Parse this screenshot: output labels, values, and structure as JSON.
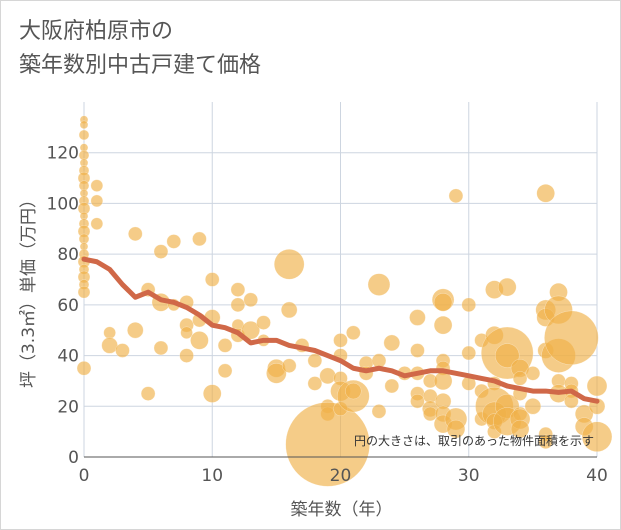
{
  "chart_data": {
    "type": "scatter",
    "title_lines": [
      "大阪府柏原市の",
      "築年数別中古戸建て価格"
    ],
    "xlabel": "築年数（年）",
    "ylabel": "坪（3.3㎡）単価（万円）",
    "xlim": [
      0,
      40
    ],
    "ylim": [
      0,
      140
    ],
    "x_ticks": [
      0,
      10,
      20,
      30,
      40
    ],
    "y_ticks": [
      0,
      20,
      40,
      60,
      80,
      100,
      120
    ],
    "grid": true,
    "note": "円の大きさは、取引のあった物件面積を示す",
    "colors": {
      "bubble": "#f0b048",
      "trend": "#d06848",
      "grid": "#cdd5e0"
    },
    "trend_line": {
      "x": [
        0,
        1,
        2,
        3,
        4,
        5,
        6,
        7,
        8,
        9,
        10,
        11,
        12,
        13,
        14,
        15,
        16,
        17,
        18,
        19,
        20,
        21,
        22,
        23,
        24,
        25,
        26,
        27,
        28,
        29,
        30,
        31,
        32,
        33,
        34,
        35,
        36,
        37,
        38,
        39,
        40
      ],
      "y": [
        78,
        77,
        74,
        68,
        63,
        65,
        62,
        61,
        59,
        56,
        52,
        51,
        49,
        45,
        46,
        46,
        44,
        43,
        42,
        40,
        38,
        35,
        34,
        35,
        34,
        32,
        33,
        34,
        34,
        33,
        32,
        31,
        30,
        28,
        27,
        26,
        26,
        25.5,
        26,
        23,
        22
      ]
    },
    "points": [
      {
        "x": 0,
        "y": 133,
        "s": 4
      },
      {
        "x": 0,
        "y": 131,
        "s": 4
      },
      {
        "x": 0,
        "y": 127,
        "s": 5
      },
      {
        "x": 0,
        "y": 122,
        "s": 4
      },
      {
        "x": 0,
        "y": 119,
        "s": 5
      },
      {
        "x": 0,
        "y": 116,
        "s": 4
      },
      {
        "x": 0,
        "y": 113,
        "s": 5
      },
      {
        "x": 0,
        "y": 110,
        "s": 6
      },
      {
        "x": 0,
        "y": 107,
        "s": 5
      },
      {
        "x": 0,
        "y": 104,
        "s": 4
      },
      {
        "x": 0,
        "y": 101,
        "s": 5
      },
      {
        "x": 0,
        "y": 98,
        "s": 6
      },
      {
        "x": 0,
        "y": 95,
        "s": 4
      },
      {
        "x": 0,
        "y": 92,
        "s": 5
      },
      {
        "x": 0,
        "y": 89,
        "s": 6
      },
      {
        "x": 0,
        "y": 86,
        "s": 5
      },
      {
        "x": 0,
        "y": 83,
        "s": 4
      },
      {
        "x": 0,
        "y": 80,
        "s": 5
      },
      {
        "x": 0,
        "y": 77,
        "s": 6
      },
      {
        "x": 0,
        "y": 74,
        "s": 5
      },
      {
        "x": 0,
        "y": 71,
        "s": 6
      },
      {
        "x": 0,
        "y": 68,
        "s": 5
      },
      {
        "x": 0,
        "y": 65,
        "s": 6
      },
      {
        "x": 0,
        "y": 35,
        "s": 7
      },
      {
        "x": 1,
        "y": 107,
        "s": 6
      },
      {
        "x": 1,
        "y": 101,
        "s": 6
      },
      {
        "x": 1,
        "y": 92,
        "s": 6
      },
      {
        "x": 2,
        "y": 49,
        "s": 6
      },
      {
        "x": 2,
        "y": 44,
        "s": 8
      },
      {
        "x": 3,
        "y": 42,
        "s": 7
      },
      {
        "x": 4,
        "y": 88,
        "s": 7
      },
      {
        "x": 4,
        "y": 50,
        "s": 8
      },
      {
        "x": 5,
        "y": 66,
        "s": 7
      },
      {
        "x": 5,
        "y": 25,
        "s": 7
      },
      {
        "x": 6,
        "y": 81,
        "s": 7
      },
      {
        "x": 6,
        "y": 61,
        "s": 9
      },
      {
        "x": 6,
        "y": 43,
        "s": 7
      },
      {
        "x": 7,
        "y": 85,
        "s": 7
      },
      {
        "x": 7,
        "y": 60,
        "s": 6
      },
      {
        "x": 8,
        "y": 61,
        "s": 7
      },
      {
        "x": 8,
        "y": 52,
        "s": 7
      },
      {
        "x": 8,
        "y": 49,
        "s": 6
      },
      {
        "x": 8,
        "y": 40,
        "s": 7
      },
      {
        "x": 9,
        "y": 86,
        "s": 7
      },
      {
        "x": 9,
        "y": 54,
        "s": 7
      },
      {
        "x": 9,
        "y": 46,
        "s": 9
      },
      {
        "x": 10,
        "y": 70,
        "s": 7
      },
      {
        "x": 10,
        "y": 55,
        "s": 8
      },
      {
        "x": 10,
        "y": 25,
        "s": 9
      },
      {
        "x": 11,
        "y": 44,
        "s": 7
      },
      {
        "x": 11,
        "y": 34,
        "s": 7
      },
      {
        "x": 12,
        "y": 66,
        "s": 7
      },
      {
        "x": 12,
        "y": 60,
        "s": 7
      },
      {
        "x": 12,
        "y": 52,
        "s": 6
      },
      {
        "x": 12,
        "y": 48,
        "s": 7
      },
      {
        "x": 13,
        "y": 62,
        "s": 7
      },
      {
        "x": 13,
        "y": 50,
        "s": 9
      },
      {
        "x": 14,
        "y": 53,
        "s": 7
      },
      {
        "x": 14,
        "y": 46,
        "s": 6
      },
      {
        "x": 15,
        "y": 35,
        "s": 9
      },
      {
        "x": 15,
        "y": 33,
        "s": 10
      },
      {
        "x": 16,
        "y": 76,
        "s": 15
      },
      {
        "x": 16,
        "y": 58,
        "s": 8
      },
      {
        "x": 16,
        "y": 36,
        "s": 7
      },
      {
        "x": 17,
        "y": 44,
        "s": 7
      },
      {
        "x": 18,
        "y": 29,
        "s": 7
      },
      {
        "x": 18,
        "y": 38,
        "s": 7
      },
      {
        "x": 19,
        "y": 32,
        "s": 8
      },
      {
        "x": 19,
        "y": 20,
        "s": 7
      },
      {
        "x": 19,
        "y": 17,
        "s": 7
      },
      {
        "x": 19,
        "y": 5,
        "s": 42
      },
      {
        "x": 20,
        "y": 46,
        "s": 7
      },
      {
        "x": 20,
        "y": 40,
        "s": 7
      },
      {
        "x": 20,
        "y": 31,
        "s": 7
      },
      {
        "x": 20,
        "y": 26,
        "s": 10
      },
      {
        "x": 20,
        "y": 19,
        "s": 7
      },
      {
        "x": 21,
        "y": 49,
        "s": 7
      },
      {
        "x": 21,
        "y": 24,
        "s": 16
      },
      {
        "x": 21,
        "y": 26,
        "s": 8
      },
      {
        "x": 22,
        "y": 37,
        "s": 7
      },
      {
        "x": 22,
        "y": 33,
        "s": 7
      },
      {
        "x": 23,
        "y": 38,
        "s": 7
      },
      {
        "x": 23,
        "y": 68,
        "s": 11
      },
      {
        "x": 23,
        "y": 18,
        "s": 7
      },
      {
        "x": 24,
        "y": 45,
        "s": 8
      },
      {
        "x": 24,
        "y": 28,
        "s": 7
      },
      {
        "x": 25,
        "y": 33,
        "s": 7
      },
      {
        "x": 26,
        "y": 55,
        "s": 8
      },
      {
        "x": 26,
        "y": 42,
        "s": 7
      },
      {
        "x": 26,
        "y": 33,
        "s": 7
      },
      {
        "x": 26,
        "y": 25,
        "s": 7
      },
      {
        "x": 26,
        "y": 22,
        "s": 7
      },
      {
        "x": 27,
        "y": 30,
        "s": 7
      },
      {
        "x": 27,
        "y": 24,
        "s": 7
      },
      {
        "x": 27,
        "y": 19,
        "s": 8
      },
      {
        "x": 27,
        "y": 17,
        "s": 7
      },
      {
        "x": 28,
        "y": 62,
        "s": 11
      },
      {
        "x": 28,
        "y": 61,
        "s": 9
      },
      {
        "x": 28,
        "y": 52,
        "s": 9
      },
      {
        "x": 28,
        "y": 38,
        "s": 7
      },
      {
        "x": 28,
        "y": 35,
        "s": 7
      },
      {
        "x": 28,
        "y": 30,
        "s": 9
      },
      {
        "x": 28,
        "y": 22,
        "s": 8
      },
      {
        "x": 28,
        "y": 17,
        "s": 8
      },
      {
        "x": 28,
        "y": 13,
        "s": 9
      },
      {
        "x": 29,
        "y": 103,
        "s": 7
      },
      {
        "x": 29,
        "y": 15,
        "s": 11
      },
      {
        "x": 29,
        "y": 11,
        "s": 9
      },
      {
        "x": 30,
        "y": 60,
        "s": 7
      },
      {
        "x": 30,
        "y": 41,
        "s": 7
      },
      {
        "x": 30,
        "y": 29,
        "s": 7
      },
      {
        "x": 31,
        "y": 46,
        "s": 7
      },
      {
        "x": 31,
        "y": 26,
        "s": 7
      },
      {
        "x": 31,
        "y": 15,
        "s": 7
      },
      {
        "x": 32,
        "y": 66,
        "s": 9
      },
      {
        "x": 32,
        "y": 48,
        "s": 9
      },
      {
        "x": 32,
        "y": 29,
        "s": 7
      },
      {
        "x": 32,
        "y": 20,
        "s": 19
      },
      {
        "x": 32,
        "y": 17,
        "s": 12
      },
      {
        "x": 32,
        "y": 14,
        "s": 8
      },
      {
        "x": 32,
        "y": 10,
        "s": 7
      },
      {
        "x": 33,
        "y": 67,
        "s": 9
      },
      {
        "x": 33,
        "y": 41,
        "s": 26
      },
      {
        "x": 33,
        "y": 40,
        "s": 12
      },
      {
        "x": 33,
        "y": 20,
        "s": 12
      },
      {
        "x": 33,
        "y": 14,
        "s": 14
      },
      {
        "x": 34,
        "y": 35,
        "s": 9
      },
      {
        "x": 34,
        "y": 31,
        "s": 7
      },
      {
        "x": 34,
        "y": 25,
        "s": 7
      },
      {
        "x": 34,
        "y": 17,
        "s": 7
      },
      {
        "x": 34,
        "y": 15,
        "s": 10
      },
      {
        "x": 34,
        "y": 11,
        "s": 9
      },
      {
        "x": 35,
        "y": 33,
        "s": 7
      },
      {
        "x": 35,
        "y": 20,
        "s": 8
      },
      {
        "x": 36,
        "y": 104,
        "s": 9
      },
      {
        "x": 36,
        "y": 58,
        "s": 10
      },
      {
        "x": 36,
        "y": 55,
        "s": 9
      },
      {
        "x": 36,
        "y": 42,
        "s": 8
      },
      {
        "x": 36,
        "y": 9,
        "s": 7
      },
      {
        "x": 36,
        "y": 6,
        "s": 7
      },
      {
        "x": 37,
        "y": 65,
        "s": 9
      },
      {
        "x": 37,
        "y": 58,
        "s": 14
      },
      {
        "x": 37,
        "y": 40,
        "s": 17
      },
      {
        "x": 37,
        "y": 30,
        "s": 7
      },
      {
        "x": 37,
        "y": 25,
        "s": 9
      },
      {
        "x": 38,
        "y": 47,
        "s": 27
      },
      {
        "x": 38,
        "y": 29,
        "s": 7
      },
      {
        "x": 38,
        "y": 26,
        "s": 7
      },
      {
        "x": 38,
        "y": 22,
        "s": 7
      },
      {
        "x": 39,
        "y": 17,
        "s": 9
      },
      {
        "x": 39,
        "y": 12,
        "s": 9
      },
      {
        "x": 40,
        "y": 28,
        "s": 10
      },
      {
        "x": 40,
        "y": 20,
        "s": 8
      },
      {
        "x": 40,
        "y": 8,
        "s": 15
      }
    ]
  }
}
